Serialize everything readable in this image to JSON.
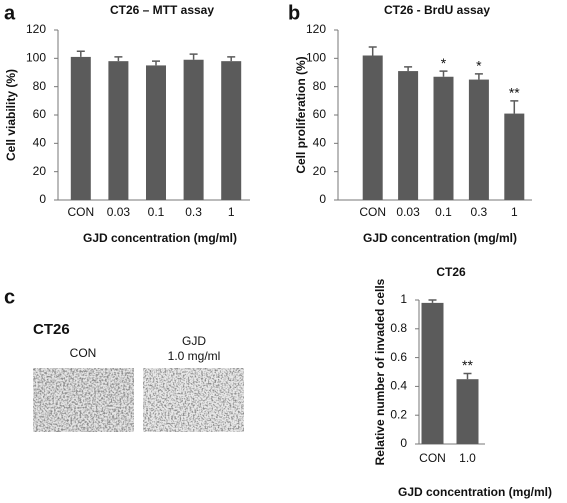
{
  "chart_data": [
    {
      "type": "bar",
      "panel": "a",
      "title": "CT26 – MTT assay",
      "y_label": "Cell viability (%)",
      "x_label": "GJD concentration (mg/ml)",
      "categories": [
        "CON",
        "0.03",
        "0.1",
        "0.3",
        "1"
      ],
      "values": [
        101,
        98,
        95,
        99,
        98
      ],
      "errors": [
        4,
        3,
        3,
        4,
        3
      ],
      "color": "#5b5b5b",
      "ylim": [
        0,
        120
      ],
      "yticks": [
        0,
        20,
        40,
        60,
        80,
        100,
        120
      ]
    },
    {
      "type": "bar",
      "panel": "b",
      "title": "CT26 - BrdU assay",
      "y_label": "Cell proliferation (%)",
      "x_label": "GJD concentration (mg/ml)",
      "categories": [
        "CON",
        "0.03",
        "0.1",
        "0.3",
        "1"
      ],
      "values": [
        102,
        91,
        87,
        85,
        61
      ],
      "errors": [
        6,
        3,
        4,
        4,
        9
      ],
      "annotations": [
        {
          "category": "0.1",
          "text": "*"
        },
        {
          "category": "0.3",
          "text": "*"
        },
        {
          "category": "1",
          "text": "**"
        }
      ],
      "color": "#5b5b5b",
      "ylim": [
        0,
        120
      ],
      "yticks": [
        0,
        20,
        40,
        60,
        80,
        100,
        120
      ]
    },
    {
      "type": "bar",
      "panel": "c",
      "title": "CT26",
      "y_label": "Relative number of invaded cells",
      "x_label": "GJD concentration (mg/ml)",
      "categories": [
        "CON",
        "1.0"
      ],
      "values": [
        0.98,
        0.45
      ],
      "errors": [
        0.02,
        0.04
      ],
      "annotations": [
        {
          "category": "1.0",
          "text": "**"
        }
      ],
      "color": "#5b5b5b",
      "ylim": [
        0,
        1
      ],
      "yticks": [
        0,
        0.2,
        0.4,
        0.6,
        0.8,
        1
      ]
    }
  ],
  "images": {
    "title": "CT26",
    "left_label": "CON",
    "right_label_line1": "GJD",
    "right_label_line2": "1.0 mg/ml"
  }
}
